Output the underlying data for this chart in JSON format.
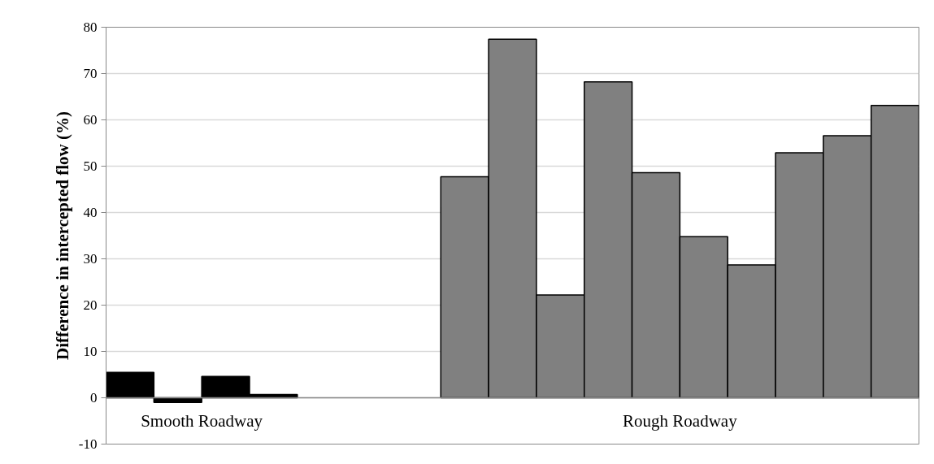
{
  "chart_data": {
    "type": "bar",
    "ylabel": "Difference in intercepted flow (%)",
    "categories": [
      null,
      null,
      null,
      null,
      null,
      null,
      null,
      null,
      null,
      null,
      null,
      null,
      null,
      null,
      null,
      null,
      null
    ],
    "series": [
      {
        "color": "#000000",
        "values": [
          5.5,
          -1.0,
          4.6,
          0.7,
          null,
          null,
          null,
          null,
          null,
          null,
          null,
          null,
          null,
          null,
          null,
          null,
          null
        ]
      },
      {
        "color": "#808080",
        "values": [
          null,
          null,
          null,
          null,
          null,
          null,
          null,
          47.7,
          77.4,
          22.2,
          68.2,
          48.6,
          34.8,
          28.7,
          52.9,
          56.6,
          63.1
        ]
      }
    ],
    "annotations": [
      "Smooth Roadway",
      "Rough Roadway"
    ],
    "ylim": [
      -10,
      80
    ],
    "yticks": [
      -10,
      0,
      10,
      20,
      30,
      40,
      50,
      60,
      70,
      80
    ],
    "grid": "y"
  }
}
